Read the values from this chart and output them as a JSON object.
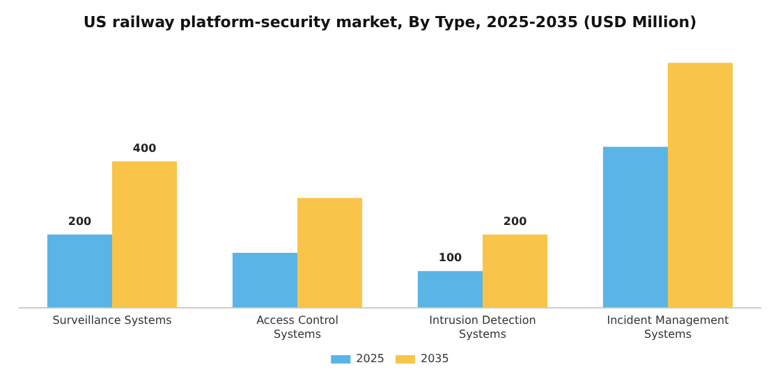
{
  "chart_data": {
    "type": "bar",
    "title": "US railway platform-security market, By Type, 2025-2035 (USD Million)",
    "categories": [
      "Surveillance Systems",
      "Access Control Systems",
      "Intrusion Detection Systems",
      "Incident Management Systems"
    ],
    "series": [
      {
        "name": "2025",
        "color": "#5ab4e5",
        "values": [
          200,
          150,
          100,
          440
        ],
        "value_labels": [
          "200",
          null,
          "100",
          null
        ]
      },
      {
        "name": "2035",
        "color": "#f8c44a",
        "values": [
          400,
          300,
          200,
          670
        ],
        "value_labels": [
          "400",
          null,
          "200",
          null
        ]
      }
    ],
    "legend": "bottom",
    "grid": false
  }
}
